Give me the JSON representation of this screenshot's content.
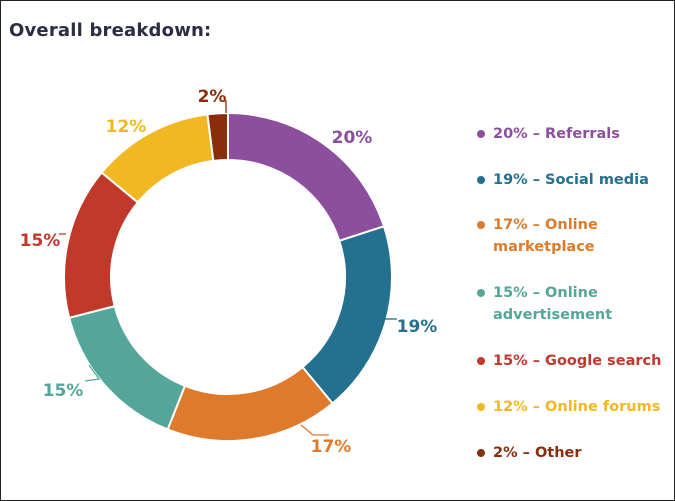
{
  "header": {
    "title": "Overall breakdown:"
  },
  "colors": {
    "referrals": "#8c4f9e",
    "social_media": "#23708f",
    "online_marketplace": "#de7a2a",
    "online_advertisement": "#55a69a",
    "google_search": "#c0392b",
    "online_forums": "#f1b823",
    "other": "#8a2d0c"
  },
  "chart_data": {
    "type": "pie",
    "donut": true,
    "title": "",
    "slices": [
      {
        "label": "Referrals",
        "value": 20,
        "value_label": "20%",
        "legend": "20% – Referrals",
        "color": "#8c4f9e"
      },
      {
        "label": "Social media",
        "value": 19,
        "value_label": "19%",
        "legend": "19% – Social media",
        "color": "#23708f"
      },
      {
        "label": "Online marketplace",
        "value": 17,
        "value_label": "17%",
        "legend": "17% – Online marketplace",
        "color": "#de7a2a"
      },
      {
        "label": "Online advertisement",
        "value": 15,
        "value_label": "15%",
        "legend": "15% – Online advertisement",
        "color": "#55a69a"
      },
      {
        "label": "Google search",
        "value": 15,
        "value_label": "15%",
        "legend": "15% – Google search",
        "color": "#c0392b"
      },
      {
        "label": "Online forums",
        "value": 12,
        "value_label": "12%",
        "legend": "12% – Online forums",
        "color": "#f1b823"
      },
      {
        "label": "Other",
        "value": 2,
        "value_label": "2%",
        "legend": "2% – Other",
        "color": "#8a2d0c"
      }
    ],
    "legend_position": "right"
  }
}
